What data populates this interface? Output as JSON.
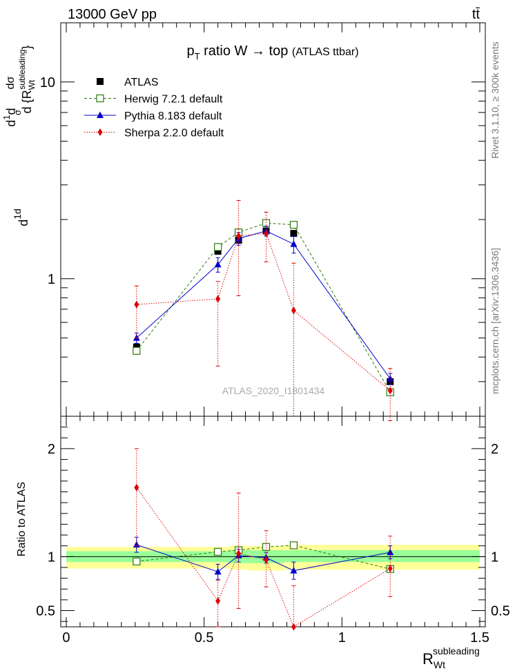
{
  "header": {
    "left_label": "13000 GeV pp",
    "right_label": "tt̄"
  },
  "side_labels": {
    "rivet": "Rivet 3.1.10, ≥ 300k events",
    "mcplots": "mcplots.cern.ch [arXiv:1306.3436]"
  },
  "chart_data": [
    {
      "type": "scatter",
      "panel": "main",
      "title": "pT ratio W → top (ATLAS ttbar)",
      "title_parts": {
        "p": "p",
        "sub": "T",
        "rest": " ratio W → top ",
        "small": "(ATLAS ttbar)"
      },
      "watermark": "ATLAS_2020_I1801434",
      "ylabel": "dσ/d{R_Wt^subleading} · 1/σ",
      "yscale": "log",
      "ylim": [
        0.2,
        20
      ],
      "xlim": [
        -0.02,
        1.52
      ],
      "ytick_labels": [
        {
          "value": 1,
          "label": "1"
        },
        {
          "value": 10,
          "label": "10"
        }
      ],
      "legend_position": "top-left",
      "series": [
        {
          "name": "ATLAS",
          "color": "#000000",
          "marker": "square-filled",
          "x": [
            0.255,
            0.55,
            0.625,
            0.725,
            0.825,
            1.175
          ],
          "y": [
            0.45,
            1.38,
            1.57,
            1.75,
            1.7,
            0.3
          ]
        },
        {
          "name": "Herwig 7.2.1 default",
          "color": "#2a7a0a",
          "marker": "square-open",
          "linestyle": "dashed",
          "x": [
            0.255,
            0.55,
            0.625,
            0.725,
            0.825,
            1.175
          ],
          "y": [
            0.43,
            1.45,
            1.72,
            1.92,
            1.88,
            0.265
          ]
        },
        {
          "name": "Pythia 8.183 default",
          "color": "#0000cc",
          "marker": "triangle",
          "linestyle": "solid",
          "x": [
            0.255,
            0.55,
            0.625,
            0.725,
            0.825,
            1.175
          ],
          "y": [
            0.5,
            1.18,
            1.6,
            1.75,
            1.5,
            0.31
          ],
          "yerr": [
            0.03,
            0.1,
            0.12,
            0.1,
            0.15,
            0.02
          ]
        },
        {
          "name": "Sherpa 2.2.0 default",
          "color": "#dd0000",
          "marker": "diamond",
          "linestyle": "dotted",
          "x": [
            0.255,
            0.55,
            0.625,
            0.725,
            0.825,
            1.175
          ],
          "y": [
            0.74,
            0.79,
            1.65,
            1.7,
            0.69,
            0.27
          ],
          "ylow": [
            0.5,
            0.36,
            0.82,
            1.22,
            0.2,
            0.19
          ],
          "yhigh": [
            0.92,
            0.97,
            2.5,
            2.18,
            1.2,
            0.35
          ]
        }
      ]
    },
    {
      "type": "scatter",
      "panel": "ratio",
      "ylabel": "Ratio to ATLAS",
      "xlabel": "R_Wt^subleading",
      "xlabel_parts": {
        "main": "R",
        "sub": "Wt",
        "sup": "subleading"
      },
      "ylim": [
        0.35,
        2.3
      ],
      "xlim": [
        -0.02,
        1.52
      ],
      "ytick_labels": [
        {
          "value": 0.5,
          "label": "0.5"
        },
        {
          "value": 1,
          "label": "1"
        },
        {
          "value": 2,
          "label": "2"
        }
      ],
      "xtick_labels": [
        {
          "value": 0,
          "label": "0"
        },
        {
          "value": 0.5,
          "label": "0.5"
        },
        {
          "value": 1,
          "label": "1"
        },
        {
          "value": 1.5,
          "label": "1.5"
        }
      ],
      "bands": [
        {
          "x0": 0.0,
          "x1": 0.59,
          "stat": [
            0.95,
            1.05
          ],
          "total": [
            0.89,
            1.09
          ]
        },
        {
          "x0": 0.59,
          "x1": 0.66,
          "stat": [
            0.94,
            1.06
          ],
          "total": [
            0.88,
            1.1
          ]
        },
        {
          "x0": 0.66,
          "x1": 0.79,
          "stat": [
            0.94,
            1.06
          ],
          "total": [
            0.87,
            1.1
          ]
        },
        {
          "x0": 0.79,
          "x1": 0.87,
          "stat": [
            0.95,
            1.06
          ],
          "total": [
            0.88,
            1.11
          ]
        },
        {
          "x0": 0.87,
          "x1": 1.5,
          "stat": [
            0.95,
            1.06
          ],
          "total": [
            0.88,
            1.11
          ]
        }
      ],
      "series": [
        {
          "name": "Herwig 7.2.1 default",
          "color": "#2a7a0a",
          "marker": "square-open",
          "x": [
            0.255,
            0.55,
            0.625,
            0.725,
            0.825,
            1.175
          ],
          "y": [
            0.955,
            1.045,
            1.06,
            1.09,
            1.105,
            0.885
          ]
        },
        {
          "name": "Pythia 8.183 default",
          "color": "#0000cc",
          "marker": "triangle",
          "x": [
            0.255,
            0.55,
            0.625,
            0.725,
            0.825,
            1.175
          ],
          "y": [
            1.11,
            0.86,
            1.01,
            0.99,
            0.87,
            1.04
          ],
          "yerr": [
            0.07,
            0.07,
            0.06,
            0.05,
            0.08,
            0.06
          ]
        },
        {
          "name": "Sherpa 2.2.0 default",
          "color": "#dd0000",
          "marker": "diamond",
          "x": [
            0.255,
            0.55,
            0.625,
            0.725,
            0.825,
            1.175
          ],
          "y": [
            1.64,
            0.59,
            1.03,
            0.97,
            0.35,
            0.89
          ],
          "ylow": [
            1.1,
            0.35,
            0.52,
            0.72,
            0.35,
            0.63
          ],
          "yhigh": [
            2.0,
            0.78,
            1.59,
            1.24,
            0.73,
            1.19
          ]
        }
      ]
    }
  ]
}
